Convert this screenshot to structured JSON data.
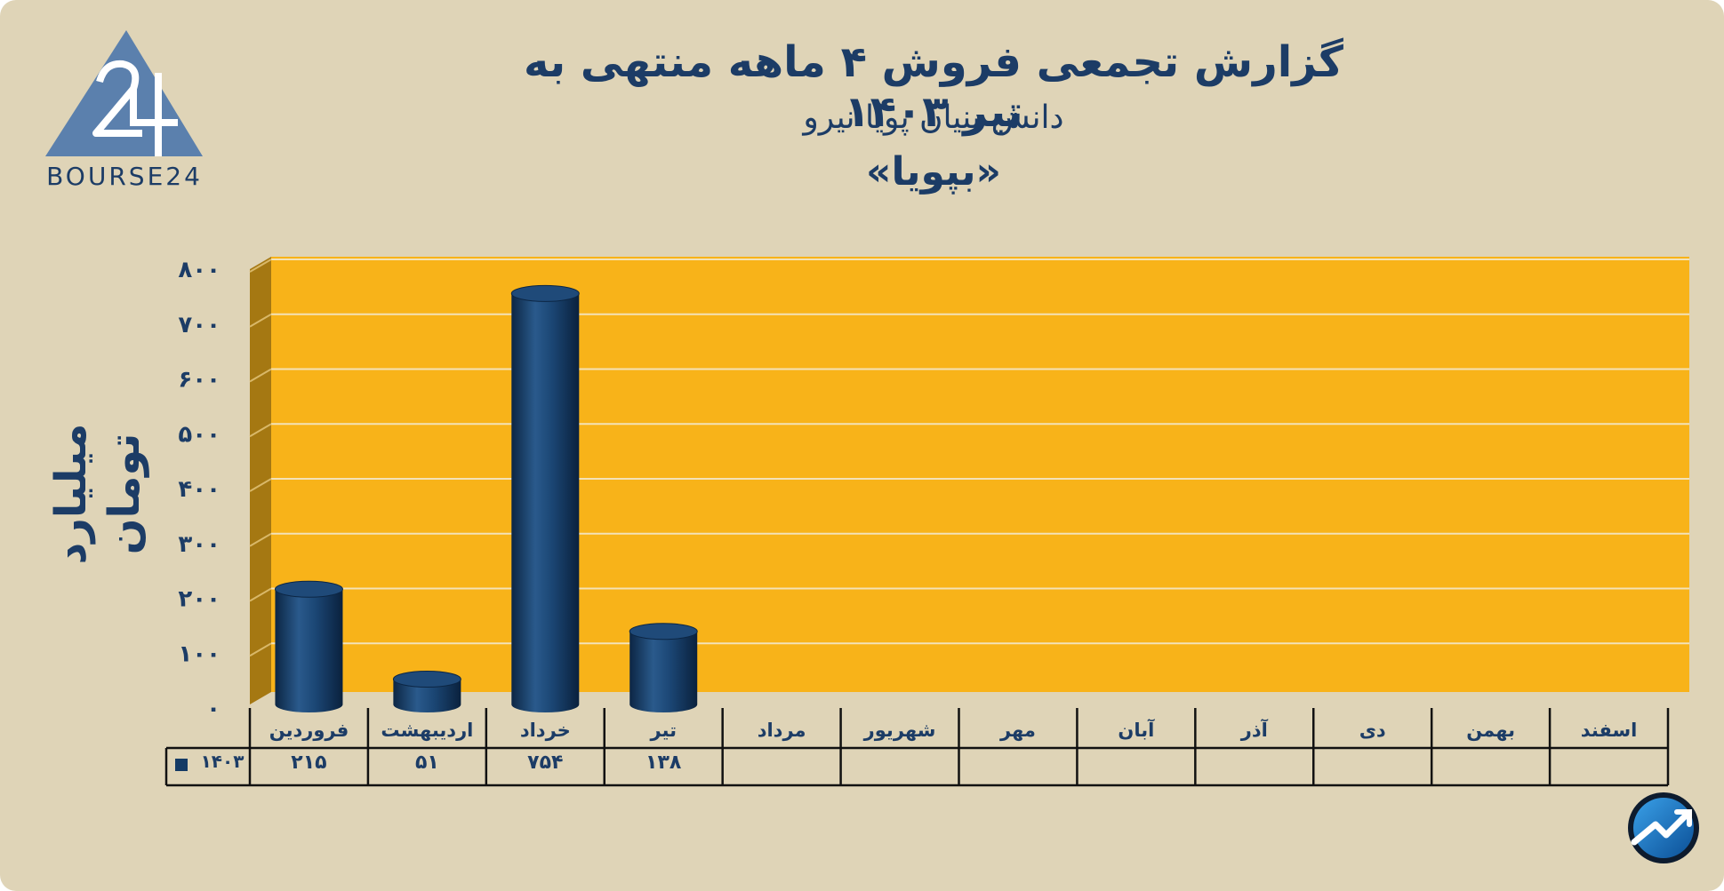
{
  "header": {
    "title": "گزارش تجمعی فروش ۴ ماهه منتهی به تیر ۱۴۰۳",
    "subtitle": "دانش بنیان پویا نیرو",
    "ticker": "«بپویا»"
  },
  "logo": {
    "text": "BOURSE24",
    "mark": "24"
  },
  "colors": {
    "background": "#dfd4b7",
    "plot": "#f8b319",
    "plot_side": "#a57812",
    "bar": "#143a64",
    "text": "#1c3c66",
    "logo": "#5b80ad"
  },
  "chart_data": {
    "type": "bar",
    "title": "گزارش تجمعی فروش ۴ ماهه منتهی به تیر ۱۴۰۳",
    "ylabel": "میلیارد تومان",
    "ylim": [
      0,
      800
    ],
    "yticks": [
      "۰",
      "۱۰۰",
      "۲۰۰",
      "۳۰۰",
      "۴۰۰",
      "۵۰۰",
      "۶۰۰",
      "۷۰۰",
      "۸۰۰"
    ],
    "grid": true,
    "legend": "bottom-left table",
    "categories": [
      "فروردین",
      "اردیبهشت",
      "خرداد",
      "تیر",
      "مرداد",
      "شهریور",
      "مهر",
      "آبان",
      "آذر",
      "دی",
      "بهمن",
      "اسفند"
    ],
    "series": [
      {
        "name": "۱۴۰۳",
        "values": [
          215,
          51,
          754,
          138,
          null,
          null,
          null,
          null,
          null,
          null,
          null,
          null
        ],
        "labels": [
          "۲۱۵",
          "۵۱",
          "۷۵۴",
          "۱۳۸",
          "",
          "",
          "",
          "",
          "",
          "",
          "",
          ""
        ]
      }
    ]
  }
}
